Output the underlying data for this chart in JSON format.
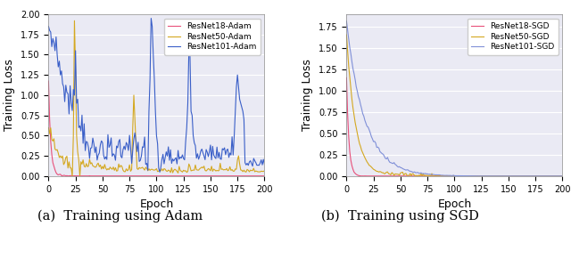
{
  "title_a": "(a)  Training using Adam",
  "title_b": "(b)  Training using SGD",
  "xlabel": "Epoch",
  "ylabel": "Training Loss",
  "xlim": [
    0,
    200
  ],
  "ylim_adam": [
    0,
    2.0
  ],
  "ylim_sgd": [
    0,
    1.9
  ],
  "xticks": [
    0,
    25,
    50,
    75,
    100,
    125,
    150,
    175,
    200
  ],
  "yticks_adam": [
    0.0,
    0.25,
    0.5,
    0.75,
    1.0,
    1.25,
    1.5,
    1.75,
    2.0
  ],
  "yticks_sgd": [
    0.0,
    0.25,
    0.5,
    0.75,
    1.0,
    1.25,
    1.5,
    1.75
  ],
  "colors": {
    "resnet18": "#e8507a",
    "resnet50": "#d4a820",
    "resnet101_adam": "#3a5fc8",
    "resnet101_sgd": "#8090d8"
  },
  "legend_adam": [
    "ResNet18-Adam",
    "ResNet50-Adam",
    "ResNet101-Adam"
  ],
  "legend_sgd": [
    "ResNet18-SGD",
    "ResNet50-SGD",
    "ResNet101-SGD"
  ],
  "background_color": "#eaeaf4",
  "grid_color": "white",
  "linewidth": 0.8,
  "caption_fontsize": 10.5,
  "tick_fontsize": 7,
  "label_fontsize": 9
}
